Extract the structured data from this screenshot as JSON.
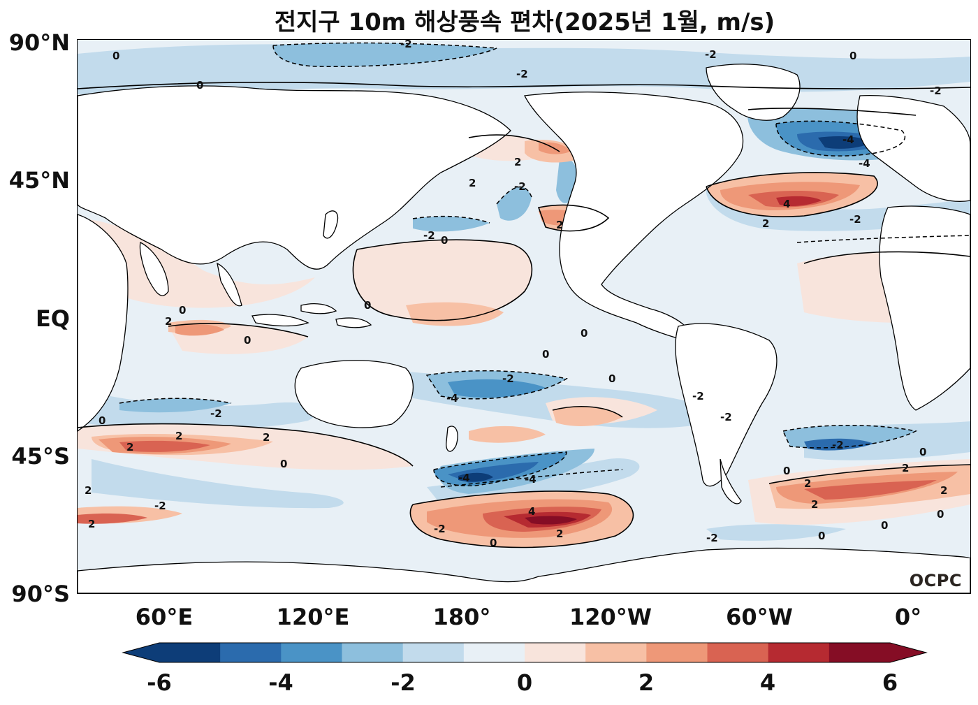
{
  "title": "전지구 10m 해상풍속 편차(2025년 1월, m/s)",
  "watermark": "OCPC",
  "lat_ticks": [
    "90°N",
    "45°N",
    "EQ",
    "45°S",
    "90°S"
  ],
  "lon_ticks": [
    "60°E",
    "120°E",
    "180°",
    "120°W",
    "60°W",
    "0°"
  ],
  "colorbar": {
    "tick_labels": [
      "-6",
      "-4",
      "-2",
      "0",
      "2",
      "4",
      "6"
    ],
    "levels": [
      -6,
      -5,
      -4,
      -3,
      -2,
      -1,
      0,
      1,
      2,
      3,
      4,
      5,
      6
    ],
    "colors": [
      "#0d3d78",
      "#2b6bad",
      "#4a93c6",
      "#8dbfdd",
      "#c2dbec",
      "#e8f0f6",
      "#f8e4dc",
      "#f7c0a5",
      "#ee9878",
      "#d96352",
      "#b62a31",
      "#850d25"
    ],
    "extend": "both"
  },
  "contour_labels": {
    "zero": "0",
    "minus2": "-2",
    "minus4": "-4",
    "plus2": "2",
    "plus4": "4"
  },
  "map": {
    "projection": "PlateCarree",
    "central_longitude": 180,
    "extent_lon": [
      30,
      390
    ],
    "extent_lat": [
      -90,
      90
    ],
    "ocean_color": "#e8f0f6",
    "land_color": "#ffffff"
  }
}
